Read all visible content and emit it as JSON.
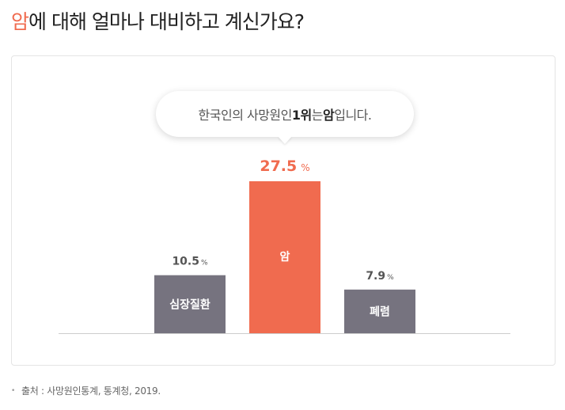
{
  "heading": {
    "highlight": "암",
    "rest": "에 대해 얼마나 대비하고 계신가요?"
  },
  "callout": {
    "pre": "한국인의 사망원인 ",
    "rank": "1위",
    "mid": "는 ",
    "cause": "암",
    "post": "입니다."
  },
  "source": "출처 : 사망원인통계, 통계청, 2019.",
  "colors": {
    "accent": "#f06b4f",
    "bar": "#76737f",
    "baseline": "#cccccc"
  },
  "chart_data": {
    "type": "bar",
    "categories": [
      "심장질환",
      "암",
      "폐렴"
    ],
    "values": [
      10.5,
      27.5,
      7.9
    ],
    "unit": "%",
    "highlight_index": 1
  }
}
